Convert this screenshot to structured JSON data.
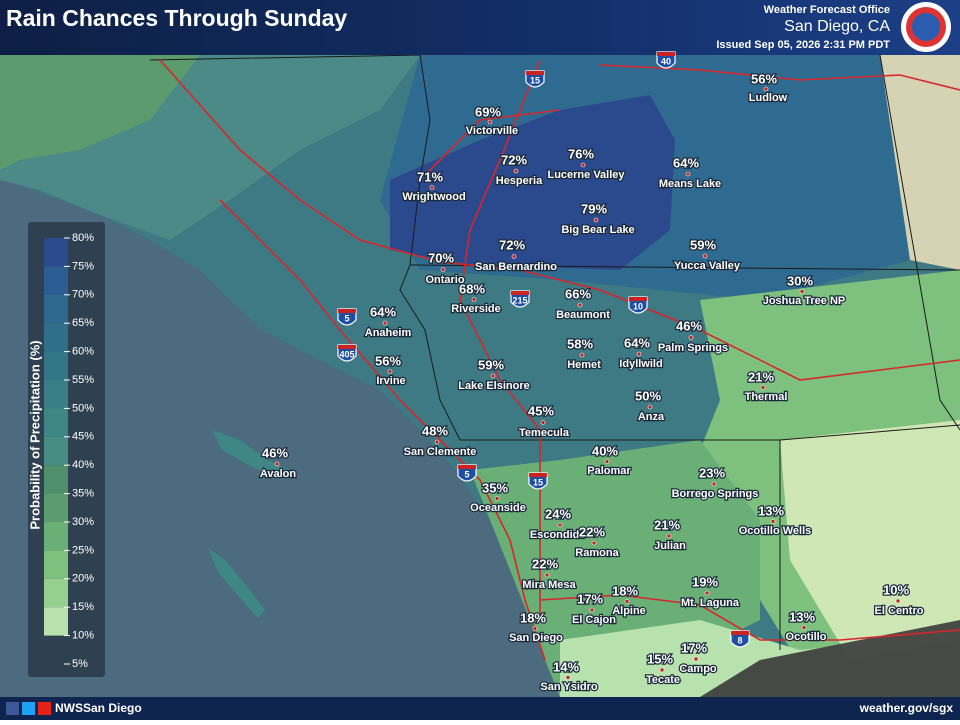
{
  "header": {
    "title": "Rain Chances Through Sunday",
    "office": "Weather Forecast Office",
    "location": "San Diego, CA",
    "issued": "Issued Sep 05, 2026 2:31 PM PDT"
  },
  "legend": {
    "title": "Probability of Precipitation (%)",
    "ticks": [
      "80%",
      "75%",
      "70%",
      "65%",
      "60%",
      "55%",
      "50%",
      "45%",
      "40%",
      "35%",
      "30%",
      "25%",
      "20%",
      "15%",
      "10%",
      "5%"
    ]
  },
  "highways": [
    "15",
    "40",
    "5",
    "405",
    "215",
    "10",
    "8",
    "5",
    "15"
  ],
  "places": [
    {
      "pop": "56%",
      "name": "Ludlow"
    },
    {
      "pop": "69%",
      "name": "Victorville"
    },
    {
      "pop": "72%",
      "name": "Hesperia"
    },
    {
      "pop": "76%",
      "name": "Lucerne Valley"
    },
    {
      "pop": "64%",
      "name": "Means Lake"
    },
    {
      "pop": "71%",
      "name": "Wrightwood"
    },
    {
      "pop": "79%",
      "name": "Big Bear Lake"
    },
    {
      "pop": "59%",
      "name": "Yucca Valley"
    },
    {
      "pop": "70%",
      "name": "Ontario"
    },
    {
      "pop": "72%",
      "name": "San Bernardino"
    },
    {
      "pop": "68%",
      "name": "Riverside"
    },
    {
      "pop": "66%",
      "name": "Beaumont"
    },
    {
      "pop": "30%",
      "name": "Joshua Tree NP"
    },
    {
      "pop": "64%",
      "name": "Anaheim"
    },
    {
      "pop": "56%",
      "name": "Irvine"
    },
    {
      "pop": "59%",
      "name": "Lake Elsinore"
    },
    {
      "pop": "58%",
      "name": "Hemet"
    },
    {
      "pop": "64%",
      "name": "Idyllwild"
    },
    {
      "pop": "46%",
      "name": "Palm Springs"
    },
    {
      "pop": "21%",
      "name": "Thermal"
    },
    {
      "pop": "50%",
      "name": "Anza"
    },
    {
      "pop": "45%",
      "name": "Temecula"
    },
    {
      "pop": "48%",
      "name": "San Clemente"
    },
    {
      "pop": "46%",
      "name": "Avalon"
    },
    {
      "pop": "40%",
      "name": "Palomar"
    },
    {
      "pop": "23%",
      "name": "Borrego Springs"
    },
    {
      "pop": "35%",
      "name": "Oceanside"
    },
    {
      "pop": "24%",
      "name": "Escondido"
    },
    {
      "pop": "22%",
      "name": "Ramona"
    },
    {
      "pop": "21%",
      "name": "Julian"
    },
    {
      "pop": "13%",
      "name": "Ocotillo Wells"
    },
    {
      "pop": "22%",
      "name": "Mira Mesa"
    },
    {
      "pop": "18%",
      "name": "Alpine"
    },
    {
      "pop": "19%",
      "name": "Mt. Laguna"
    },
    {
      "pop": "17%",
      "name": "El Cajon"
    },
    {
      "pop": "18%",
      "name": "San Diego"
    },
    {
      "pop": "10%",
      "name": "El Centro"
    },
    {
      "pop": "13%",
      "name": "Ocotillo"
    },
    {
      "pop": "17%",
      "name": "Campo"
    },
    {
      "pop": "15%",
      "name": "Tecate"
    },
    {
      "pop": "14%",
      "name": "San Ysidro"
    }
  ],
  "footer": {
    "handle": "NWSSan Diego",
    "url": "weather.gov/sgx"
  }
}
